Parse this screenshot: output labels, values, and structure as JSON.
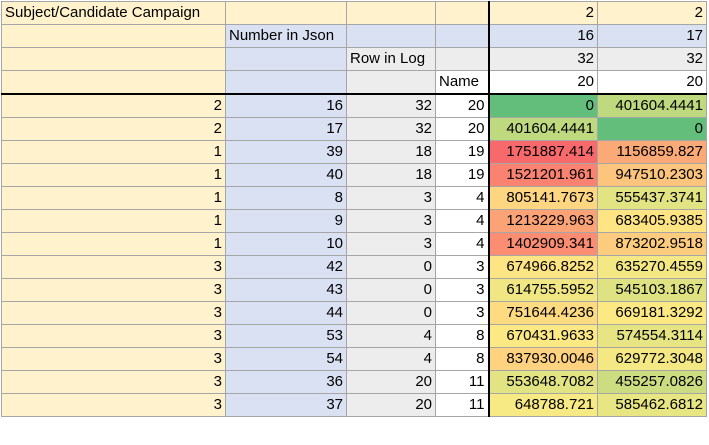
{
  "header": {
    "r1": {
      "a": "Subject/Candidate Campaign",
      "e": "2",
      "f": "2"
    },
    "r2": {
      "b": "Number in Json",
      "e": "16",
      "f": "17"
    },
    "r3": {
      "c": "Row in Log",
      "e": "32",
      "f": "32"
    },
    "r4": {
      "d": "Name",
      "e": "20",
      "f": "20"
    }
  },
  "rows": [
    {
      "a": "2",
      "b": "16",
      "c": "32",
      "d": "20",
      "e": "0",
      "f": "401604.4441",
      "e_color": "#63be7b",
      "f_color": "#bfd97f"
    },
    {
      "a": "2",
      "b": "17",
      "c": "32",
      "d": "20",
      "e": "401604.4441",
      "f": "0",
      "e_color": "#bfd97f",
      "f_color": "#63be7b"
    },
    {
      "a": "1",
      "b": "39",
      "c": "18",
      "d": "19",
      "e": "1751887.414",
      "f": "1156859.827",
      "e_color": "#f8696b",
      "f_color": "#fbaa77"
    },
    {
      "a": "1",
      "b": "40",
      "c": "18",
      "d": "19",
      "e": "1521201.961",
      "f": "947510.2303",
      "e_color": "#f98370",
      "f_color": "#fdc47d"
    },
    {
      "a": "1",
      "b": "8",
      "c": "3",
      "d": "4",
      "e": "805141.7673",
      "f": "555437.3741",
      "e_color": "#fed580",
      "f_color": "#e2e383"
    },
    {
      "a": "1",
      "b": "9",
      "c": "3",
      "d": "4",
      "e": "1213229.963",
      "f": "683405.9385",
      "e_color": "#fba276",
      "f_color": "#fee482"
    },
    {
      "a": "1",
      "b": "10",
      "c": "3",
      "d": "4",
      "e": "1402909.341",
      "f": "873202.9518",
      "e_color": "#fa8d72",
      "f_color": "#fdcc7e"
    },
    {
      "a": "3",
      "b": "42",
      "c": "0",
      "d": "3",
      "e": "674966.8252",
      "f": "635270.4559",
      "e_color": "#fee482",
      "f_color": "#f4e884"
    },
    {
      "a": "3",
      "b": "43",
      "c": "0",
      "d": "3",
      "e": "614755.5952",
      "f": "545103.1867",
      "e_color": "#f0e784",
      "f_color": "#dfe283"
    },
    {
      "a": "3",
      "b": "44",
      "c": "0",
      "d": "3",
      "e": "751644.4236",
      "f": "669181.3292",
      "e_color": "#feda81",
      "f_color": "#fde983"
    },
    {
      "a": "3",
      "b": "53",
      "c": "4",
      "d": "8",
      "e": "670431.9633",
      "f": "574554.3114",
      "e_color": "#fde983",
      "f_color": "#e6e483"
    },
    {
      "a": "3",
      "b": "54",
      "c": "4",
      "d": "8",
      "e": "837930.0046",
      "f": "629772.3048",
      "e_color": "#fed27f",
      "f_color": "#f3e884"
    },
    {
      "a": "3",
      "b": "36",
      "c": "20",
      "d": "11",
      "e": "553648.7082",
      "f": "455257.0826",
      "e_color": "#e2e383",
      "f_color": "#cbdc81"
    },
    {
      "a": "3",
      "b": "37",
      "c": "20",
      "d": "11",
      "e": "648788.721",
      "f": "585462.6812",
      "e_color": "#f7e984",
      "f_color": "#e8e583"
    }
  ]
}
